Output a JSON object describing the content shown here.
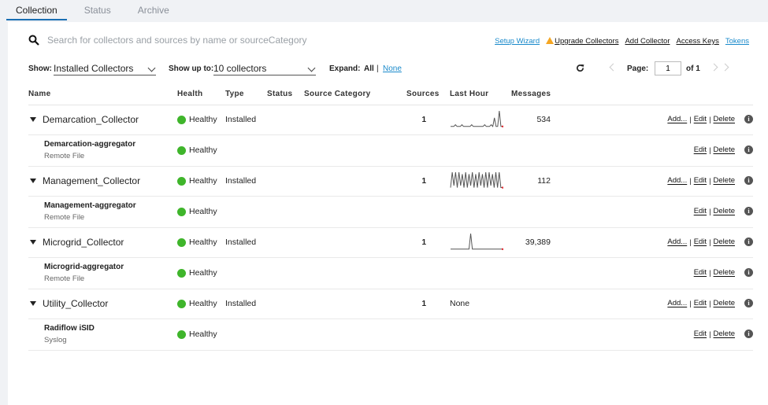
{
  "tabs": [
    "Collection",
    "Status",
    "Archive"
  ],
  "search": {
    "placeholder": "Search for collectors and sources by name or sourceCategory"
  },
  "toplinks": {
    "setup_wizard": "Setup Wizard",
    "upgrade_collectors": "Upgrade Collectors",
    "add_collector": "Add Collector",
    "access_keys": "Access Keys",
    "tokens": "Tokens"
  },
  "filters": {
    "show_label": "Show:",
    "show_value": "Installed Collectors",
    "show_up_to_label": "Show up to:",
    "show_up_to_value": "10 collectors",
    "expand_label": "Expand:",
    "expand_all": "All",
    "expand_sep": "|",
    "expand_none": "None"
  },
  "pager": {
    "page_label": "Page:",
    "page_value": "1",
    "of_label": "of 1"
  },
  "columns": [
    "Name",
    "Health",
    "Type",
    "Status",
    "Source Category",
    "Sources",
    "Last Hour",
    "Messages"
  ],
  "actions": {
    "add": "Add...",
    "edit": "Edit",
    "delete": "Delete",
    "sep": "|"
  },
  "collectors": [
    {
      "name": "Demarcation_Collector",
      "health": "Healthy",
      "type": "Installed",
      "sources": "1",
      "last_hour": [
        1,
        1,
        1,
        2,
        1,
        1,
        1,
        2,
        1,
        1,
        1,
        1,
        1,
        2,
        1,
        1,
        1,
        1,
        1,
        1,
        1,
        2,
        1,
        1,
        1,
        2,
        1,
        6,
        1,
        1,
        10,
        1,
        1
      ],
      "last_hour_text": "",
      "messages": "534",
      "source": {
        "name": "Demarcation-aggregator",
        "type": "Remote File",
        "health": "Healthy"
      }
    },
    {
      "name": "Management_Collector",
      "health": "Healthy",
      "type": "Installed",
      "sources": "1",
      "last_hour": [
        1,
        9,
        2,
        9,
        1,
        9,
        2,
        8,
        1,
        9,
        1,
        8,
        2,
        9,
        1,
        8,
        1,
        9,
        2,
        8,
        1,
        9,
        1,
        9,
        2,
        8,
        1,
        9,
        1,
        9,
        1,
        1
      ],
      "last_hour_text": "",
      "messages": "112",
      "source": {
        "name": "Management-aggregator",
        "type": "Remote File",
        "health": "Healthy"
      }
    },
    {
      "name": "Microgrid_Collector",
      "health": "Healthy",
      "type": "Installed",
      "sources": "1",
      "last_hour": [
        1,
        1,
        1,
        1,
        1,
        1,
        1,
        1,
        1,
        1,
        1,
        1,
        10,
        1,
        1,
        1,
        1,
        1,
        1,
        1,
        1,
        1,
        1,
        1,
        1,
        1,
        1,
        1,
        1,
        1,
        1,
        1
      ],
      "last_hour_text": "",
      "messages": "39,389",
      "source": {
        "name": "Microgrid-aggregator",
        "type": "Remote File",
        "health": "Healthy"
      }
    },
    {
      "name": "Utility_Collector",
      "health": "Healthy",
      "type": "Installed",
      "sources": "1",
      "last_hour": [],
      "last_hour_text": "None",
      "messages": "",
      "source": {
        "name": "Radiflow iSID",
        "type": "Syslog",
        "health": "Healthy"
      }
    }
  ],
  "colors": {
    "accent": "#1a6fb3",
    "link": "#1a8acb",
    "healthy": "#3fb52b",
    "warning": "#f5a623",
    "spark_end": "#e0282e"
  }
}
